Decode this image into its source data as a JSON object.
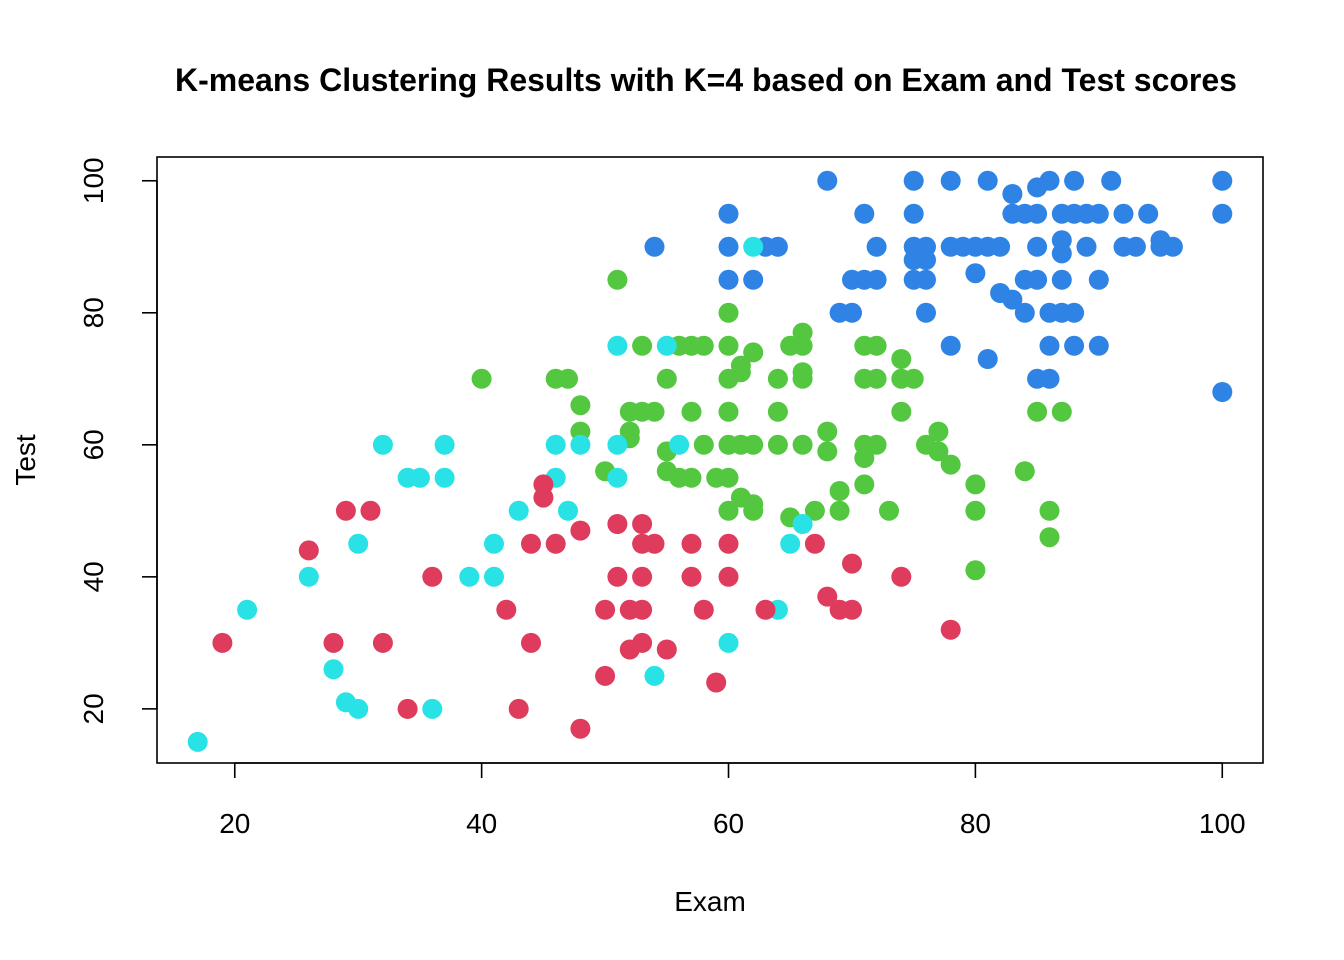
{
  "chart_data": {
    "type": "scatter",
    "title": "K-means Clustering Results with K=4 based on Exam and Test scores",
    "xlabel": "Exam",
    "ylabel": "Test",
    "xlim": [
      13.7,
      103.3
    ],
    "ylim": [
      11.8,
      103.6
    ],
    "xticks": [
      "20",
      "40",
      "60",
      "80",
      "100"
    ],
    "yticks": [
      "20",
      "40",
      "60",
      "80",
      "100"
    ],
    "grid": false,
    "legend": "none",
    "series": [
      {
        "color": "#2f83e4",
        "points": [
          [
            54,
            90
          ],
          [
            60,
            95
          ],
          [
            60,
            90
          ],
          [
            60,
            85
          ],
          [
            62,
            85
          ],
          [
            63,
            90
          ],
          [
            64,
            90
          ],
          [
            68,
            100
          ],
          [
            69,
            80
          ],
          [
            70,
            80
          ],
          [
            70,
            85
          ],
          [
            71,
            85
          ],
          [
            71,
            95
          ],
          [
            72,
            90
          ],
          [
            72,
            85
          ],
          [
            75,
            100
          ],
          [
            75,
            95
          ],
          [
            75,
            90
          ],
          [
            75,
            88
          ],
          [
            75,
            85
          ],
          [
            76,
            90
          ],
          [
            76,
            88
          ],
          [
            76,
            85
          ],
          [
            76,
            80
          ],
          [
            78,
            100
          ],
          [
            78,
            90
          ],
          [
            78,
            75
          ],
          [
            79,
            90
          ],
          [
            80,
            90
          ],
          [
            80,
            86
          ],
          [
            81,
            100
          ],
          [
            81,
            90
          ],
          [
            81,
            73
          ],
          [
            82,
            90
          ],
          [
            82,
            83
          ],
          [
            83,
            98
          ],
          [
            83,
            95
          ],
          [
            83,
            82
          ],
          [
            84,
            95
          ],
          [
            84,
            85
          ],
          [
            84,
            80
          ],
          [
            85,
            99
          ],
          [
            85,
            95
          ],
          [
            85,
            90
          ],
          [
            85,
            85
          ],
          [
            85,
            70
          ],
          [
            86,
            100
          ],
          [
            86,
            80
          ],
          [
            86,
            75
          ],
          [
            86,
            70
          ],
          [
            87,
            95
          ],
          [
            87,
            91
          ],
          [
            87,
            89
          ],
          [
            87,
            85
          ],
          [
            87,
            80
          ],
          [
            88,
            100
          ],
          [
            88,
            95
          ],
          [
            88,
            80
          ],
          [
            88,
            75
          ],
          [
            89,
            95
          ],
          [
            89,
            90
          ],
          [
            90,
            95
          ],
          [
            90,
            85
          ],
          [
            90,
            75
          ],
          [
            91,
            100
          ],
          [
            92,
            95
          ],
          [
            92,
            90
          ],
          [
            93,
            90
          ],
          [
            94,
            95
          ],
          [
            95,
            91
          ],
          [
            95,
            90
          ],
          [
            96,
            90
          ],
          [
            100,
            100
          ],
          [
            100,
            95
          ],
          [
            100,
            68
          ]
        ]
      },
      {
        "color": "#53c73f",
        "points": [
          [
            40,
            70
          ],
          [
            46,
            70
          ],
          [
            47,
            70
          ],
          [
            48,
            66
          ],
          [
            48,
            62
          ],
          [
            50,
            56
          ],
          [
            51,
            85
          ],
          [
            52,
            65
          ],
          [
            52,
            62
          ],
          [
            52,
            61
          ],
          [
            53,
            75
          ],
          [
            53,
            65
          ],
          [
            54,
            65
          ],
          [
            55,
            70
          ],
          [
            55,
            59
          ],
          [
            55,
            56
          ],
          [
            56,
            75
          ],
          [
            56,
            55
          ],
          [
            57,
            75
          ],
          [
            57,
            65
          ],
          [
            57,
            55
          ],
          [
            58,
            75
          ],
          [
            58,
            60
          ],
          [
            59,
            55
          ],
          [
            60,
            80
          ],
          [
            60,
            75
          ],
          [
            60,
            70
          ],
          [
            60,
            65
          ],
          [
            60,
            60
          ],
          [
            60,
            55
          ],
          [
            60,
            50
          ],
          [
            61,
            72
          ],
          [
            61,
            71
          ],
          [
            61,
            60
          ],
          [
            61,
            52
          ],
          [
            62,
            74
          ],
          [
            62,
            60
          ],
          [
            62,
            51
          ],
          [
            62,
            50
          ],
          [
            64,
            70
          ],
          [
            64,
            65
          ],
          [
            64,
            60
          ],
          [
            65,
            75
          ],
          [
            65,
            49
          ],
          [
            66,
            77
          ],
          [
            66,
            75
          ],
          [
            66,
            71
          ],
          [
            66,
            70
          ],
          [
            66,
            60
          ],
          [
            67,
            50
          ],
          [
            68,
            62
          ],
          [
            68,
            59
          ],
          [
            69,
            53
          ],
          [
            69,
            50
          ],
          [
            71,
            75
          ],
          [
            71,
            70
          ],
          [
            71,
            60
          ],
          [
            71,
            58
          ],
          [
            71,
            54
          ],
          [
            72,
            75
          ],
          [
            72,
            70
          ],
          [
            72,
            60
          ],
          [
            73,
            50
          ],
          [
            74,
            73
          ],
          [
            74,
            70
          ],
          [
            74,
            65
          ],
          [
            75,
            70
          ],
          [
            76,
            60
          ],
          [
            77,
            62
          ],
          [
            77,
            59
          ],
          [
            78,
            57
          ],
          [
            80,
            54
          ],
          [
            80,
            50
          ],
          [
            80,
            41
          ],
          [
            84,
            56
          ],
          [
            85,
            65
          ],
          [
            86,
            50
          ],
          [
            86,
            46
          ],
          [
            87,
            65
          ]
        ]
      },
      {
        "color": "#28e2e5",
        "points": [
          [
            17,
            15
          ],
          [
            21,
            35
          ],
          [
            26,
            40
          ],
          [
            28,
            26
          ],
          [
            29,
            21
          ],
          [
            30,
            45
          ],
          [
            30,
            20
          ],
          [
            32,
            60
          ],
          [
            34,
            55
          ],
          [
            35,
            55
          ],
          [
            36,
            20
          ],
          [
            37,
            60
          ],
          [
            37,
            55
          ],
          [
            39,
            40
          ],
          [
            41,
            45
          ],
          [
            41,
            40
          ],
          [
            43,
            50
          ],
          [
            46,
            60
          ],
          [
            46,
            55
          ],
          [
            47,
            50
          ],
          [
            48,
            60
          ],
          [
            51,
            75
          ],
          [
            51,
            60
          ],
          [
            51,
            55
          ],
          [
            54,
            25
          ],
          [
            55,
            75
          ],
          [
            56,
            60
          ],
          [
            60,
            30
          ],
          [
            62,
            90
          ],
          [
            64,
            35
          ],
          [
            65,
            45
          ],
          [
            66,
            48
          ]
        ]
      },
      {
        "color": "#df3b5c",
        "points": [
          [
            19,
            30
          ],
          [
            26,
            44
          ],
          [
            28,
            30
          ],
          [
            29,
            50
          ],
          [
            31,
            50
          ],
          [
            32,
            30
          ],
          [
            34,
            20
          ],
          [
            36,
            40
          ],
          [
            42,
            35
          ],
          [
            43,
            20
          ],
          [
            44,
            45
          ],
          [
            44,
            30
          ],
          [
            45,
            54
          ],
          [
            45,
            52
          ],
          [
            46,
            45
          ],
          [
            48,
            47
          ],
          [
            48,
            17
          ],
          [
            50,
            35
          ],
          [
            50,
            25
          ],
          [
            51,
            48
          ],
          [
            51,
            40
          ],
          [
            52,
            35
          ],
          [
            52,
            29
          ],
          [
            53,
            48
          ],
          [
            53,
            45
          ],
          [
            53,
            40
          ],
          [
            53,
            35
          ],
          [
            53,
            30
          ],
          [
            54,
            45
          ],
          [
            55,
            29
          ],
          [
            57,
            45
          ],
          [
            57,
            40
          ],
          [
            58,
            35
          ],
          [
            59,
            24
          ],
          [
            60,
            45
          ],
          [
            60,
            40
          ],
          [
            63,
            35
          ],
          [
            67,
            45
          ],
          [
            68,
            37
          ],
          [
            69,
            35
          ],
          [
            70,
            42
          ],
          [
            70,
            35
          ],
          [
            74,
            40
          ],
          [
            78,
            32
          ]
        ]
      }
    ]
  }
}
